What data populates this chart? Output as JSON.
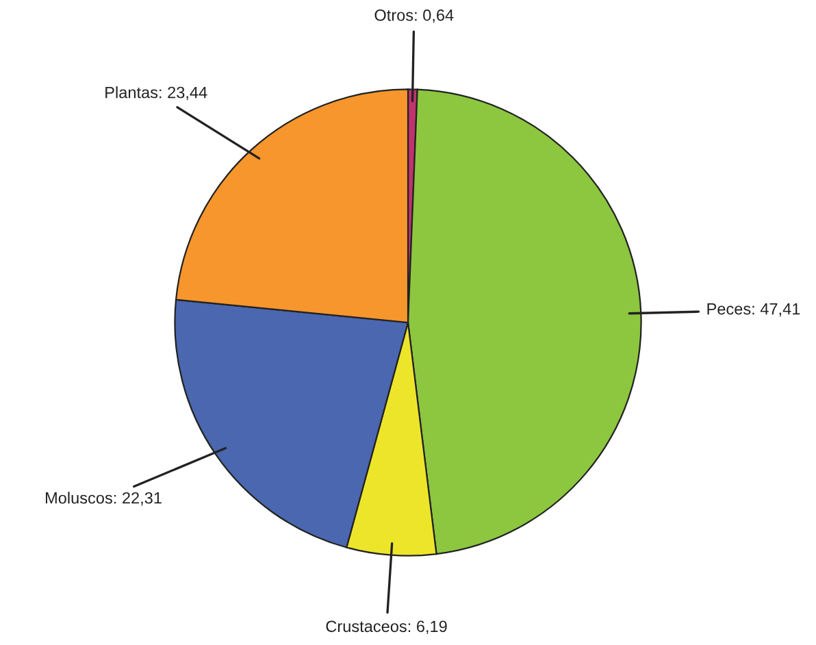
{
  "chart_data": {
    "type": "pie",
    "categories": [
      "Otros",
      "Peces",
      "Crustaceos",
      "Moluscos",
      "Plantas"
    ],
    "values": [
      0.64,
      47.41,
      6.19,
      22.31,
      23.44
    ],
    "value_labels": [
      "0,64",
      "47,41",
      "6,19",
      "22,31",
      "23,44"
    ],
    "colors": [
      "#c0336e",
      "#8dc63f",
      "#ede52a",
      "#4a67b0",
      "#f7962c"
    ]
  }
}
